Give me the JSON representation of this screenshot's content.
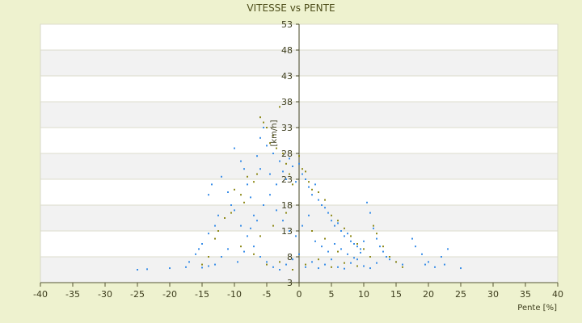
{
  "chart_data": {
    "type": "scatter",
    "title": "VITESSE vs PENTE",
    "xlabel": "Pente [%]",
    "ylabel": "[km/h]",
    "xlim": [
      -40,
      40
    ],
    "ylim": [
      3,
      53
    ],
    "x_ticks": [
      -40,
      -35,
      -30,
      -25,
      -20,
      -15,
      -10,
      -5,
      0,
      5,
      10,
      15,
      20,
      25,
      30,
      35,
      40
    ],
    "y_ticks": [
      3,
      8,
      13,
      18,
      23,
      28,
      33,
      38,
      43,
      48,
      53
    ],
    "background_bands": "alternating white / light gray",
    "grid": true,
    "legend": "none",
    "series": [
      {
        "color": "#3a8ee8",
        "description": "dense cloud of blue points",
        "points": [
          [
            -25,
            5.5
          ],
          [
            -23.5,
            5.6
          ],
          [
            -20,
            5.8
          ],
          [
            -17.5,
            6.0
          ],
          [
            -17,
            7.0
          ],
          [
            -16,
            8.5
          ],
          [
            -15.5,
            9.5
          ],
          [
            -15,
            10.5
          ],
          [
            -14,
            12.5
          ],
          [
            -13,
            14.0
          ],
          [
            -12.5,
            16.0
          ],
          [
            -14,
            20.0
          ],
          [
            -13.5,
            22.0
          ],
          [
            -12,
            23.5
          ],
          [
            -11,
            20.5
          ],
          [
            -10.5,
            18.0
          ],
          [
            -10,
            17.0
          ],
          [
            -10,
            29.0
          ],
          [
            -9,
            26.5
          ],
          [
            -8.5,
            25.0
          ],
          [
            -8,
            22.0
          ],
          [
            -7.5,
            19.5
          ],
          [
            -7,
            16.0
          ],
          [
            -6.5,
            27.5
          ],
          [
            -6,
            25.0
          ],
          [
            -6,
            31.0
          ],
          [
            -5.5,
            33.0
          ],
          [
            -5,
            29.5
          ],
          [
            -4.5,
            24.0
          ],
          [
            -4,
            28.0
          ],
          [
            -3.5,
            22.0
          ],
          [
            -3,
            26.5
          ],
          [
            -2.5,
            24.5
          ],
          [
            -2,
            23.0
          ],
          [
            -1.5,
            27.0
          ],
          [
            -1,
            25.5
          ],
          [
            -0.5,
            22.5
          ],
          [
            0,
            26.0
          ],
          [
            0.5,
            24.0
          ],
          [
            1,
            23.0
          ],
          [
            1.5,
            21.5
          ],
          [
            2,
            20.0
          ],
          [
            2.5,
            22.0
          ],
          [
            3,
            19.0
          ],
          [
            3.5,
            18.0
          ],
          [
            4,
            17.5
          ],
          [
            4.5,
            16.5
          ],
          [
            5,
            15.0
          ],
          [
            5.5,
            14.0
          ],
          [
            6,
            14.5
          ],
          [
            6.5,
            13.0
          ],
          [
            7,
            12.0
          ],
          [
            7.5,
            12.5
          ],
          [
            8,
            11.0
          ],
          [
            8.5,
            10.5
          ],
          [
            9,
            10.0
          ],
          [
            9.5,
            9.5
          ],
          [
            10,
            11.0
          ],
          [
            10.5,
            18.5
          ],
          [
            11,
            16.5
          ],
          [
            11.5,
            13.5
          ],
          [
            12,
            11.5
          ],
          [
            12.5,
            10.0
          ],
          [
            13,
            9.0
          ],
          [
            13.5,
            8.0
          ],
          [
            14,
            7.5
          ],
          [
            15,
            7.0
          ],
          [
            16,
            6.5
          ],
          [
            17.5,
            11.5
          ],
          [
            18,
            10.0
          ],
          [
            19,
            8.5
          ],
          [
            19.5,
            6.5
          ],
          [
            20,
            7.0
          ],
          [
            21,
            6.0
          ],
          [
            22,
            8.0
          ],
          [
            22.5,
            6.5
          ],
          [
            23,
            9.5
          ],
          [
            25,
            5.8
          ],
          [
            -9,
            14.0
          ],
          [
            -8,
            12.0
          ],
          [
            -7,
            10.0
          ],
          [
            -6,
            8.0
          ],
          [
            -5,
            7.0
          ],
          [
            -4,
            6.0
          ],
          [
            -3,
            5.5
          ],
          [
            -2,
            6.5
          ],
          [
            -1,
            7.5
          ],
          [
            0,
            8.5
          ],
          [
            1,
            6.0
          ],
          [
            2,
            7.0
          ],
          [
            3,
            5.8
          ],
          [
            4,
            6.5
          ],
          [
            5,
            7.5
          ],
          [
            6,
            6.0
          ],
          [
            7,
            5.7
          ],
          [
            8,
            6.8
          ],
          [
            9,
            7.5
          ],
          [
            10,
            6.2
          ],
          [
            11,
            5.8
          ],
          [
            12,
            6.8
          ],
          [
            -11,
            9.5
          ],
          [
            -12,
            8.0
          ],
          [
            -13,
            6.5
          ],
          [
            -14,
            6.2
          ],
          [
            -15,
            5.9
          ],
          [
            -9.5,
            7.0
          ],
          [
            -8.5,
            9.0
          ],
          [
            -7.5,
            13.5
          ],
          [
            -6.5,
            15.0
          ],
          [
            -5.5,
            18.0
          ],
          [
            -4.5,
            20.0
          ],
          [
            -3.5,
            17.0
          ],
          [
            -2.5,
            15.0
          ],
          [
            -1.5,
            13.0
          ],
          [
            -0.5,
            12.0
          ],
          [
            0.5,
            14.0
          ],
          [
            1.5,
            16.0
          ],
          [
            2.5,
            11.0
          ],
          [
            3.5,
            10.0
          ],
          [
            4.5,
            9.0
          ],
          [
            5.5,
            10.5
          ],
          [
            6.5,
            9.5
          ],
          [
            7.5,
            8.5
          ],
          [
            8.5,
            7.8
          ],
          [
            9.5,
            8.8
          ]
        ]
      },
      {
        "color": "#8f8a1a",
        "description": "sparser olive points overlapping the blue cloud",
        "points": [
          [
            -15,
            6.5
          ],
          [
            -14,
            8.0
          ],
          [
            -13,
            11.5
          ],
          [
            -12.5,
            13.0
          ],
          [
            -11.5,
            15.5
          ],
          [
            -10.5,
            16.5
          ],
          [
            -10,
            21.0
          ],
          [
            -9,
            20.0
          ],
          [
            -8.5,
            18.5
          ],
          [
            -8,
            23.5
          ],
          [
            -7,
            22.5
          ],
          [
            -6.5,
            24.0
          ],
          [
            -6,
            35.0
          ],
          [
            -5.5,
            34.0
          ],
          [
            -5,
            33.0
          ],
          [
            -4.5,
            30.0
          ],
          [
            -4,
            31.5
          ],
          [
            -3.5,
            29.0
          ],
          [
            -3,
            37.0
          ],
          [
            -2.5,
            28.0
          ],
          [
            -2,
            26.0
          ],
          [
            -1.5,
            24.0
          ],
          [
            -1,
            22.0
          ],
          [
            0,
            27.5
          ],
          [
            0.5,
            25.0
          ],
          [
            1,
            24.5
          ],
          [
            1.5,
            22.5
          ],
          [
            2,
            21.0
          ],
          [
            3,
            20.5
          ],
          [
            4,
            19.0
          ],
          [
            5,
            16.0
          ],
          [
            6,
            15.0
          ],
          [
            7,
            13.5
          ],
          [
            8,
            12.0
          ],
          [
            9,
            10.5
          ],
          [
            10,
            9.5
          ],
          [
            11,
            8.0
          ],
          [
            11.5,
            14.0
          ],
          [
            12,
            12.5
          ],
          [
            13,
            10.0
          ],
          [
            14,
            8.0
          ],
          [
            15,
            7.0
          ],
          [
            16,
            6.0
          ],
          [
            -9,
            10.0
          ],
          [
            -7,
            8.5
          ],
          [
            -5,
            6.5
          ],
          [
            -3,
            7.0
          ],
          [
            -1,
            5.5
          ],
          [
            1,
            6.5
          ],
          [
            3,
            7.5
          ],
          [
            5,
            6.0
          ],
          [
            7,
            6.8
          ],
          [
            9,
            6.2
          ],
          [
            -6,
            12.0
          ],
          [
            -4,
            14.0
          ],
          [
            -2,
            16.5
          ],
          [
            2,
            13.0
          ],
          [
            4,
            11.5
          ],
          [
            6,
            9.0
          ]
        ]
      }
    ]
  }
}
